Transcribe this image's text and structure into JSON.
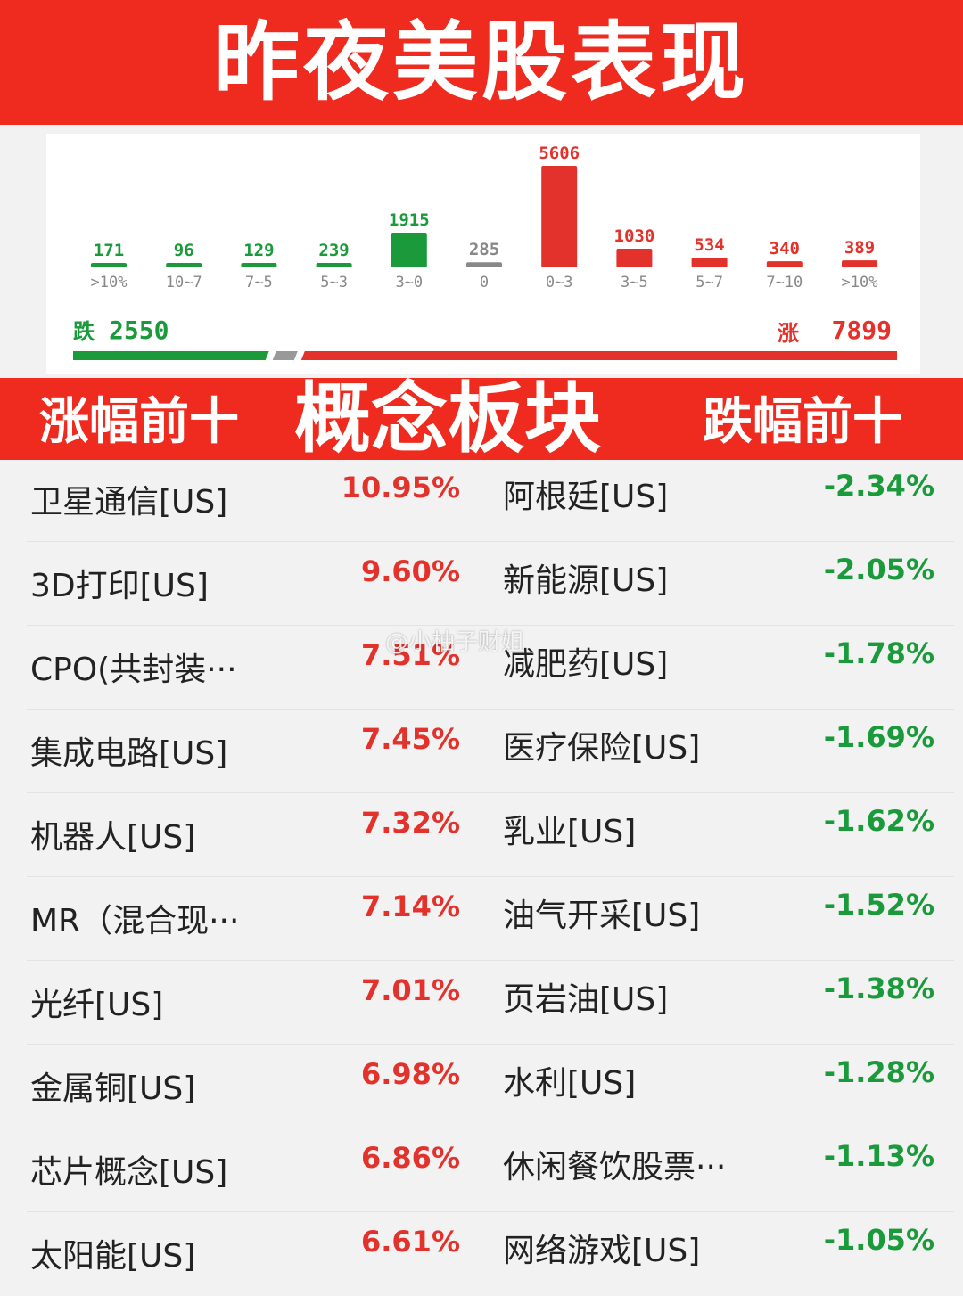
{
  "header": {
    "title": "昨夜美股表现"
  },
  "colors": {
    "banner": "#ee2b1e",
    "up": "#e3312b",
    "down": "#1a9a3a",
    "flat": "#888888"
  },
  "chart_data": {
    "type": "bar",
    "categories": [
      ">10%",
      "10~7",
      "7~5",
      "5~3",
      "3~0",
      "0",
      "0~3",
      "3~5",
      "5~7",
      "7~10",
      ">10%"
    ],
    "values": [
      171,
      96,
      129,
      239,
      1915,
      285,
      5606,
      1030,
      534,
      340,
      389
    ],
    "value_labels": [
      "171",
      "96",
      "129",
      "239",
      "1915",
      "285",
      "5606",
      "1030",
      "534",
      "340",
      "389"
    ],
    "direction": [
      "down",
      "down",
      "down",
      "down",
      "down",
      "flat",
      "up",
      "up",
      "up",
      "up",
      "up"
    ],
    "title": "",
    "xlabel": "",
    "ylabel": ""
  },
  "summary": {
    "down_label": "跌",
    "down_count": "2550",
    "up_label": "涨",
    "up_count": "7899",
    "down_value": 2550,
    "flat_value": 285,
    "up_value": 7899
  },
  "section": {
    "left_title": "涨幅前十",
    "center_title": "概念板块",
    "right_title": "跌幅前十"
  },
  "gainers": [
    {
      "name": "卫星通信[US]",
      "pct": "10.95%"
    },
    {
      "name": "3D打印[US]",
      "pct": "9.60%"
    },
    {
      "name": "CPO(共封装···",
      "pct": "7.51%"
    },
    {
      "name": "集成电路[US]",
      "pct": "7.45%"
    },
    {
      "name": "机器人[US]",
      "pct": "7.32%"
    },
    {
      "name": "MR（混合现···",
      "pct": "7.14%"
    },
    {
      "name": "光纤[US]",
      "pct": "7.01%"
    },
    {
      "name": "金属铜[US]",
      "pct": "6.98%"
    },
    {
      "name": "芯片概念[US]",
      "pct": "6.86%"
    },
    {
      "name": "太阳能[US]",
      "pct": "6.61%"
    }
  ],
  "losers": [
    {
      "name": "阿根廷[US]",
      "pct": "-2.34%"
    },
    {
      "name": "新能源[US]",
      "pct": "-2.05%"
    },
    {
      "name": "减肥药[US]",
      "pct": "-1.78%"
    },
    {
      "name": "医疗保险[US]",
      "pct": "-1.69%"
    },
    {
      "name": "乳业[US]",
      "pct": "-1.62%"
    },
    {
      "name": "油气开采[US]",
      "pct": "-1.52%"
    },
    {
      "name": "页岩油[US]",
      "pct": "-1.38%"
    },
    {
      "name": "水利[US]",
      "pct": "-1.28%"
    },
    {
      "name": "休闲餐饮股票···",
      "pct": "-1.13%"
    },
    {
      "name": "网络游戏[US]",
      "pct": "-1.05%"
    }
  ],
  "watermark": "@小柚子财姐"
}
